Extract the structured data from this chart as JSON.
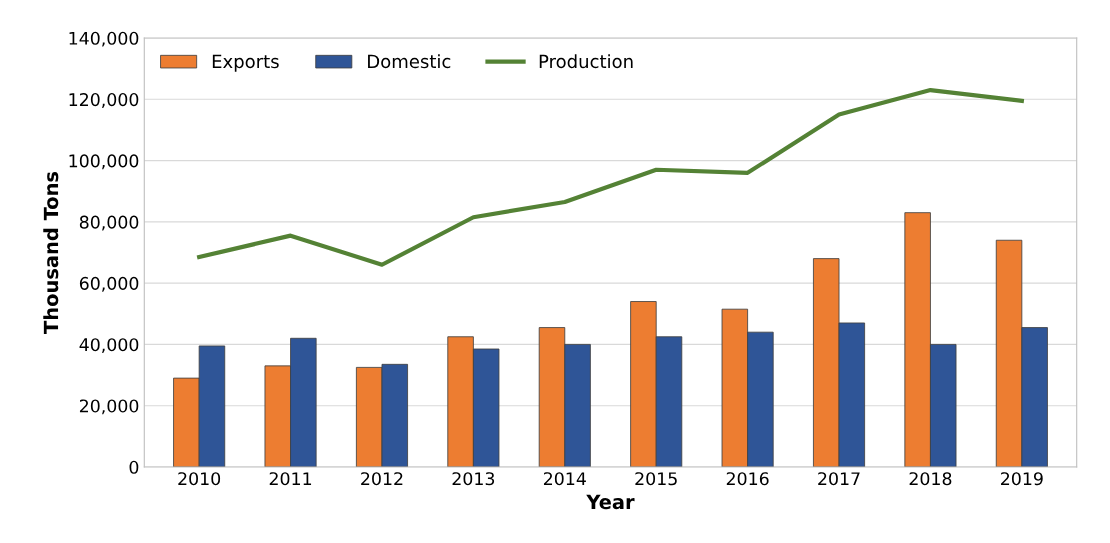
{
  "chart_data": {
    "type": "bar",
    "xlabel": "Year",
    "ylabel": "Thousand Tons",
    "categories": [
      "2010",
      "2011",
      "2012",
      "2013",
      "2014",
      "2015",
      "2016",
      "2017",
      "2018",
      "2019"
    ],
    "series": [
      {
        "name": "Exports",
        "color": "#ed7d31",
        "values": [
          29000,
          33000,
          32500,
          42500,
          45500,
          54000,
          51500,
          68000,
          83000,
          74000
        ]
      },
      {
        "name": "Domestic",
        "color": "#2f5597",
        "values": [
          39500,
          42000,
          33500,
          38500,
          40000,
          42500,
          44000,
          47000,
          40000,
          45500
        ]
      },
      {
        "name": "Production",
        "type": "line",
        "color": "#548235",
        "values": [
          68500,
          75500,
          66000,
          81500,
          86500,
          97000,
          96000,
          115000,
          123000,
          119500
        ]
      }
    ],
    "ylim": [
      0,
      140000
    ],
    "yticks": [
      {
        "value": 0,
        "label": "0"
      },
      {
        "value": 20000,
        "label": "20,000"
      },
      {
        "value": 40000,
        "label": "40,000"
      },
      {
        "value": 60000,
        "label": "60,000"
      },
      {
        "value": 80000,
        "label": "80,000"
      },
      {
        "value": 100000,
        "label": "100,000"
      },
      {
        "value": 120000,
        "label": "120,000"
      },
      {
        "value": 140000,
        "label": "140,000"
      }
    ],
    "grid": "y",
    "legend": "top left",
    "marker": "none",
    "line_style": "solid"
  }
}
